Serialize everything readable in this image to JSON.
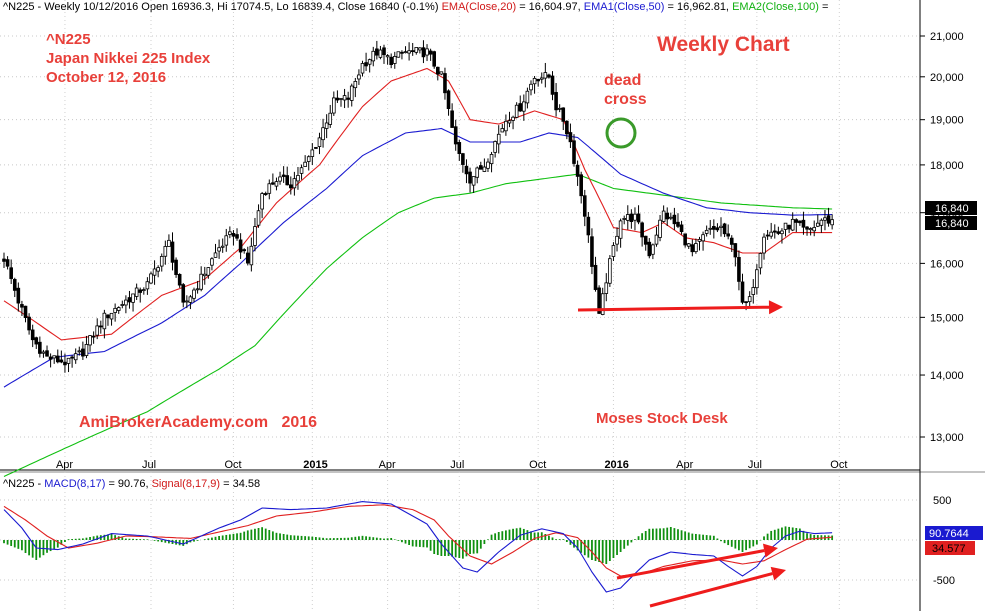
{
  "price_header": {
    "symbol": "^N225",
    "ohlc": "Weekly 10/12/2016 Open 16936.3, Hi 17074.5, Lo 16839.4, Close 16840 (-0.1%)",
    "ema20_label": "EMA(Close,20)",
    "ema20_value": "= 16,604.97,",
    "ema50_label": "EMA1(Close,50)",
    "ema50_value": "= 16,962.81,",
    "ema100_label": "EMA2(Close,100)",
    "ema100_value": "="
  },
  "macd_header": {
    "symbol": "^N225",
    "macd_label": "MACD(8,17)",
    "macd_value": "= 90.76,",
    "signal_label": "Signal(8,17,9)",
    "signal_value": "= 34.58"
  },
  "annotations": {
    "index_symbol": "^N225",
    "index_name": "Japan Nikkei 225 Index",
    "date": "October 12, 2016",
    "chart_title": "Weekly Chart",
    "dead_cross": "dead\ncross",
    "site": "AmiBrokerAcademy.com   2016",
    "author": "Moses Stock Desk"
  },
  "price_tags": {
    "close": "16,840",
    "close2": "16,840",
    "macd": "90.7644",
    "signal": "34.577"
  },
  "colors": {
    "up": "#ffffff",
    "down": "#000000",
    "ema20": "#e02020",
    "ema50": "#1a1ad0",
    "ema100": "#10c010",
    "macd": "#1a1ad0",
    "signal": "#e02020",
    "histogram": "#109010",
    "annotation": "#e8403a",
    "circle": "#3a9a2a"
  },
  "chart_data": [
    {
      "type": "candlestick",
      "title": "Weekly Chart",
      "x_ticks": [
        "Apr",
        "Jul",
        "Oct",
        "2015",
        "Apr",
        "Jul",
        "Oct",
        "2016",
        "Apr",
        "Jul",
        "Oct"
      ],
      "y_ticks": [
        "21,000",
        "20,000",
        "19,000",
        "18,000",
        "17,000",
        "16,000",
        "15,000",
        "14,000",
        "13,000"
      ],
      "ylim": [
        12100,
        21400
      ],
      "log_scale": true,
      "grid": true,
      "close_anchors": [
        [
          0,
          16100
        ],
        [
          4,
          15300
        ],
        [
          8,
          14600
        ],
        [
          12,
          14300
        ],
        [
          18,
          14200
        ],
        [
          22,
          14400
        ],
        [
          28,
          15000
        ],
        [
          36,
          15400
        ],
        [
          40,
          15600
        ],
        [
          46,
          16400
        ],
        [
          50,
          15200
        ],
        [
          54,
          15600
        ],
        [
          60,
          16300
        ],
        [
          64,
          16600
        ],
        [
          68,
          16000
        ],
        [
          72,
          17400
        ],
        [
          76,
          17700
        ],
        [
          80,
          17600
        ],
        [
          84,
          18000
        ],
        [
          88,
          18600
        ],
        [
          92,
          19400
        ],
        [
          96,
          19500
        ],
        [
          100,
          20300
        ],
        [
          104,
          20600
        ],
        [
          108,
          20400
        ],
        [
          112,
          20600
        ],
        [
          118,
          20600
        ],
        [
          122,
          20000
        ],
        [
          126,
          18400
        ],
        [
          130,
          17700
        ],
        [
          134,
          18000
        ],
        [
          140,
          19000
        ],
        [
          144,
          19300
        ],
        [
          148,
          20000
        ],
        [
          152,
          20000
        ],
        [
          154,
          19300
        ],
        [
          156,
          19000
        ],
        [
          158,
          18500
        ],
        [
          162,
          17000
        ],
        [
          164,
          16000
        ],
        [
          166,
          15000
        ],
        [
          168,
          15700
        ],
        [
          172,
          16900
        ],
        [
          176,
          16900
        ],
        [
          180,
          16200
        ],
        [
          184,
          17000
        ],
        [
          188,
          16700
        ],
        [
          192,
          16200
        ],
        [
          196,
          16600
        ],
        [
          200,
          16700
        ],
        [
          204,
          16200
        ],
        [
          206,
          15200
        ],
        [
          208,
          15300
        ],
        [
          212,
          16600
        ],
        [
          216,
          16600
        ],
        [
          220,
          16800
        ],
        [
          224,
          16600
        ],
        [
          228,
          16850
        ],
        [
          231,
          16840
        ]
      ],
      "ema20_anchors": [
        [
          0,
          15300
        ],
        [
          16,
          14600
        ],
        [
          30,
          14700
        ],
        [
          44,
          15400
        ],
        [
          56,
          15700
        ],
        [
          66,
          16300
        ],
        [
          76,
          17200
        ],
        [
          88,
          18000
        ],
        [
          100,
          19300
        ],
        [
          108,
          19900
        ],
        [
          118,
          20200
        ],
        [
          124,
          19900
        ],
        [
          130,
          19000
        ],
        [
          138,
          18900
        ],
        [
          148,
          19200
        ],
        [
          156,
          19000
        ],
        [
          162,
          17900
        ],
        [
          170,
          16700
        ],
        [
          178,
          16600
        ],
        [
          184,
          16800
        ],
        [
          190,
          16500
        ],
        [
          198,
          16400
        ],
        [
          206,
          16200
        ],
        [
          212,
          16200
        ],
        [
          220,
          16600
        ],
        [
          231,
          16600
        ]
      ],
      "ema50_anchors": [
        [
          0,
          13800
        ],
        [
          14,
          14300
        ],
        [
          28,
          14400
        ],
        [
          44,
          14900
        ],
        [
          56,
          15400
        ],
        [
          66,
          16000
        ],
        [
          78,
          16800
        ],
        [
          90,
          17500
        ],
        [
          100,
          18200
        ],
        [
          112,
          18700
        ],
        [
          122,
          18800
        ],
        [
          130,
          18500
        ],
        [
          144,
          18500
        ],
        [
          152,
          18700
        ],
        [
          160,
          18600
        ],
        [
          172,
          17800
        ],
        [
          184,
          17400
        ],
        [
          196,
          17100
        ],
        [
          208,
          17000
        ],
        [
          220,
          16950
        ],
        [
          231,
          16963
        ]
      ],
      "ema100_anchors": [
        [
          0,
          12400
        ],
        [
          20,
          12900
        ],
        [
          40,
          13400
        ],
        [
          60,
          14100
        ],
        [
          70,
          14500
        ],
        [
          80,
          15200
        ],
        [
          90,
          15900
        ],
        [
          100,
          16500
        ],
        [
          110,
          17000
        ],
        [
          120,
          17300
        ],
        [
          130,
          17400
        ],
        [
          140,
          17600
        ],
        [
          150,
          17700
        ],
        [
          160,
          17800
        ],
        [
          170,
          17500
        ],
        [
          180,
          17400
        ],
        [
          190,
          17300
        ],
        [
          200,
          17200
        ],
        [
          210,
          17150
        ],
        [
          220,
          17100
        ],
        [
          231,
          17075
        ]
      ]
    },
    {
      "type": "line",
      "title": "MACD(8,17)",
      "y_ticks": [
        "500",
        "0",
        "-500"
      ],
      "ylim": [
        -800,
        700
      ],
      "grid": true,
      "series": [
        {
          "name": "MACD(8,17)",
          "anchors": [
            [
              0,
              380
            ],
            [
              5,
              150
            ],
            [
              9,
              -100
            ],
            [
              15,
              -120
            ],
            [
              22,
              -50
            ],
            [
              30,
              80
            ],
            [
              40,
              50
            ],
            [
              50,
              -50
            ],
            [
              60,
              150
            ],
            [
              66,
              250
            ],
            [
              72,
              400
            ],
            [
              80,
              380
            ],
            [
              90,
              400
            ],
            [
              100,
              480
            ],
            [
              108,
              450
            ],
            [
              112,
              350
            ],
            [
              118,
              200
            ],
            [
              122,
              -50
            ],
            [
              128,
              -350
            ],
            [
              132,
              -400
            ],
            [
              138,
              -150
            ],
            [
              144,
              60
            ],
            [
              150,
              140
            ],
            [
              156,
              80
            ],
            [
              160,
              -100
            ],
            [
              164,
              -400
            ],
            [
              168,
              -650
            ],
            [
              172,
              -600
            ],
            [
              176,
              -420
            ],
            [
              180,
              -250
            ],
            [
              186,
              -150
            ],
            [
              192,
              -180
            ],
            [
              198,
              -200
            ],
            [
              202,
              -330
            ],
            [
              206,
              -450
            ],
            [
              210,
              -330
            ],
            [
              214,
              -100
            ],
            [
              218,
              50
            ],
            [
              222,
              110
            ],
            [
              226,
              80
            ],
            [
              231,
              91
            ]
          ]
        },
        {
          "name": "Signal(8,17,9)",
          "anchors": [
            [
              0,
              420
            ],
            [
              6,
              250
            ],
            [
              12,
              50
            ],
            [
              18,
              -100
            ],
            [
              26,
              -40
            ],
            [
              34,
              50
            ],
            [
              42,
              40
            ],
            [
              52,
              20
            ],
            [
              60,
              100
            ],
            [
              68,
              180
            ],
            [
              76,
              300
            ],
            [
              86,
              350
            ],
            [
              96,
              420
            ],
            [
              106,
              440
            ],
            [
              114,
              380
            ],
            [
              120,
              250
            ],
            [
              124,
              50
            ],
            [
              130,
              -200
            ],
            [
              136,
              -300
            ],
            [
              142,
              -150
            ],
            [
              148,
              20
            ],
            [
              154,
              90
            ],
            [
              160,
              30
            ],
            [
              164,
              -150
            ],
            [
              168,
              -350
            ],
            [
              172,
              -450
            ],
            [
              178,
              -420
            ],
            [
              184,
              -330
            ],
            [
              192,
              -260
            ],
            [
              200,
              -250
            ],
            [
              206,
              -300
            ],
            [
              212,
              -260
            ],
            [
              218,
              -120
            ],
            [
              224,
              10
            ],
            [
              231,
              35
            ]
          ]
        }
      ],
      "histogram_name": ""
    }
  ]
}
